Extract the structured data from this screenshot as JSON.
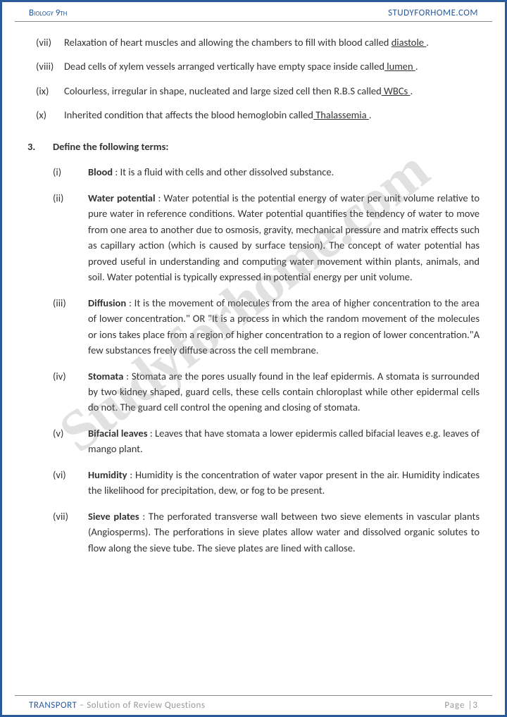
{
  "header": {
    "left": "Biology 9th",
    "right": "STUDYFORHOME.COM"
  },
  "watermark": "Studyforhome.com",
  "q2": {
    "vii": {
      "pre": "Relaxation of heart muscles and allowing the chambers to fill with blood called ",
      "u": "diastole ",
      "post": "."
    },
    "viii": {
      "pre": "Dead cells of xylem vessels arranged vertically have empty space inside called",
      "u": " lumen ",
      "post": "."
    },
    "ix": {
      "pre": "Colourless, irregular in shape, nucleated and large sized cell then R.B.S called",
      "u": " WBCs ",
      "post": "."
    },
    "x": {
      "pre": "Inherited condition that affects the blood hemoglobin called",
      "u": " Thalassemia ",
      "post": "."
    }
  },
  "q3": {
    "num": "3.",
    "title": "Define the following terms:",
    "i": {
      "term": "Blood",
      "def": " : It is a fluid with cells and other dissolved substance."
    },
    "ii": {
      "term": "Water potential",
      "def": " : Water potential is the potential energy of water per unit volume relative to pure water in reference conditions. Water potential quantifies the tendency of water to move from one area to another due to osmosis, gravity, mechanical pressure and matrix effects such as capillary action (which is caused by surface tension). The concept of water potential has proved useful in understanding and computing water movement within plants, animals, and soil. Water potential is typically expressed in potential energy per unit volume."
    },
    "iii": {
      "term": "Diffusion",
      "def": " : It is the movement of molecules from the area of higher concentration to the area of lower concentration.\" OR \"It is a process in which the random movement of the molecules or ions takes place from a region of higher concentration to a region of lower concentration.\"A few substances freely diffuse across the cell membrane."
    },
    "iv": {
      "term": "Stomata",
      "def": " : Stomata are the pores usually found in the leaf epidermis. A stomata is surrounded by two kidney shaped, guard cells, these cells contain chloroplast while other epidermal cells do not. The guard cell control the opening and closing of stomata."
    },
    "v": {
      "term": "Bifacial leaves",
      "def": " : Leaves that have stomata a lower epidermis called bifacial leaves e.g. leaves of mango plant."
    },
    "vi": {
      "term": "Humidity",
      "def": " : Humidity is the concentration of water vapor present in the air. Humidity indicates the likelihood for precipitation, dew, or fog to be present."
    },
    "vii": {
      "term": "Sieve plates",
      "def": " : The perforated transverse wall between two sieve elements in vascular plants (Angiosperms). The perforations in sieve plates allow water and dissolved organic solutes to flow along the sieve tube. The sieve plates are lined with callose."
    }
  },
  "footer": {
    "chapter": "TRANSPORT",
    "sub": " – Solution of Review Questions",
    "page": "Page |3"
  }
}
